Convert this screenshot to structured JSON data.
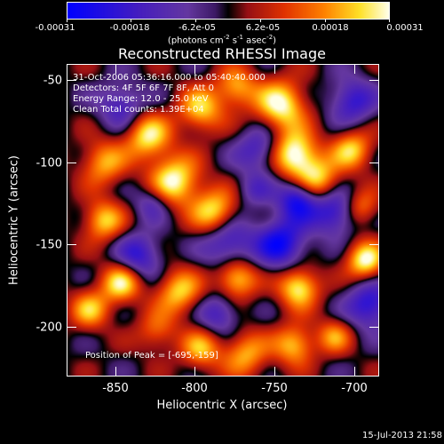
{
  "colorbar": {
    "tick_labels": [
      "-0.00031",
      "-0.00018",
      "-6.2e-05",
      "6.2e-05",
      "0.00018",
      "0.00031"
    ],
    "units_prefix": "(photons cm",
    "units_exp1": "-2",
    "units_s": " s",
    "units_exp2": "-1",
    "units_asec": " asec",
    "units_exp3": "-2",
    "units_suffix": ")",
    "min": -0.00031,
    "max": 0.00031
  },
  "title": "Reconstructed RHESSI Image",
  "info": {
    "time_range": "31-Oct-2006 05:36:16.000 to 05:40:40.000",
    "detectors": "Detectors: 4F 5F 6F 7F 8F, Att 0",
    "energy_range": "Energy Range: 12.0 - 25.0 keV",
    "clean": "Clean    Total counts: 1.39E+04",
    "peak": "Position of Peak = [-695,-159]"
  },
  "x_axis": {
    "title": "Heliocentric X (arcsec)",
    "ticks": [
      "-850",
      "-800",
      "-750",
      "-700"
    ],
    "range": [
      -880,
      -685
    ]
  },
  "y_axis": {
    "title": "Heliocentric Y (arcsec)",
    "ticks": [
      "-50",
      "-100",
      "-150",
      "-200"
    ],
    "range": [
      -235,
      -40
    ]
  },
  "timestamp": "15-Jul-2013 21:58",
  "colors": {
    "negative_min": "#0000ff",
    "negative_mid": "#5b30a8",
    "zero": "#000000",
    "positive_mid": "#e03000",
    "positive_max": "#ffffe6"
  }
}
